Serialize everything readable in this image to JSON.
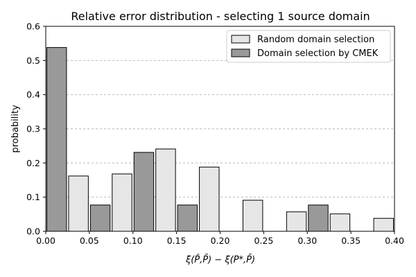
{
  "chart_data": {
    "type": "bar",
    "title": "Relative error distribution - selecting 1 source domain",
    "xlabel": "ξ(P̂,P̄) − ξ(P*,P̄)",
    "ylabel": "probability",
    "xlim": [
      0.0,
      0.4
    ],
    "ylim": [
      0.0,
      0.6
    ],
    "xticks": [
      "0.00",
      "0.05",
      "0.10",
      "0.15",
      "0.20",
      "0.25",
      "0.30",
      "0.35",
      "0.40"
    ],
    "yticks": [
      "0.0",
      "0.1",
      "0.2",
      "0.3",
      "0.4",
      "0.5",
      "0.6"
    ],
    "grid": "y-dashed",
    "legend_position": "top-right",
    "bin_width": 0.025,
    "series": [
      {
        "name": "Random domain selection",
        "color": "#e6e6e6",
        "bars": [
          {
            "x0": 0.025,
            "value": 0.162
          },
          {
            "x0": 0.075,
            "value": 0.168
          },
          {
            "x0": 0.125,
            "value": 0.241
          },
          {
            "x0": 0.175,
            "value": 0.188
          },
          {
            "x0": 0.225,
            "value": 0.091
          },
          {
            "x0": 0.275,
            "value": 0.057
          },
          {
            "x0": 0.325,
            "value": 0.051
          },
          {
            "x0": 0.375,
            "value": 0.038
          }
        ]
      },
      {
        "name": "Domain selection by CMEK",
        "color": "#999999",
        "bars": [
          {
            "x0": 0.0,
            "value": 0.538
          },
          {
            "x0": 0.05,
            "value": 0.077
          },
          {
            "x0": 0.1,
            "value": 0.231
          },
          {
            "x0": 0.15,
            "value": 0.077
          },
          {
            "x0": 0.3,
            "value": 0.077
          }
        ]
      }
    ]
  }
}
